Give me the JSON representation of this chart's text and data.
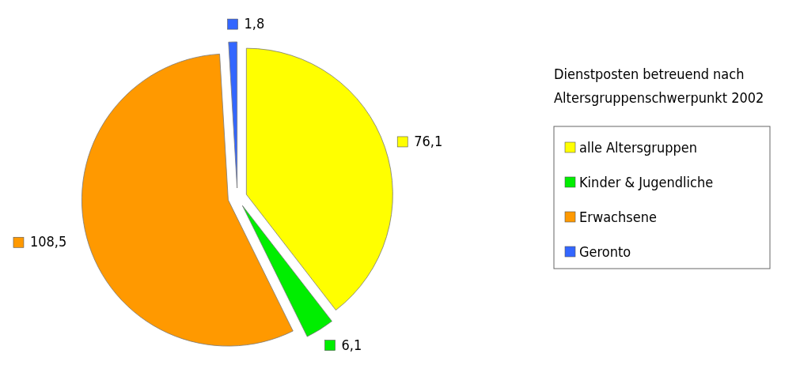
{
  "chart_data": {
    "type": "pie",
    "legend_title": "Dienstposten betreuend nach Altersgruppenschwerpunkt 2002",
    "categories": [
      "alle Altersgruppen",
      "Kinder & Jugendliche",
      "Erwachsene",
      "Geronto"
    ],
    "values": [
      76.1,
      6.1,
      108.5,
      1.8
    ],
    "value_labels": [
      "76,1",
      "6,1",
      "108,5",
      "1,8"
    ],
    "colors": [
      "#ffff00",
      "#00ee00",
      "#ff9900",
      "#3366ff"
    ],
    "legend": "right"
  }
}
